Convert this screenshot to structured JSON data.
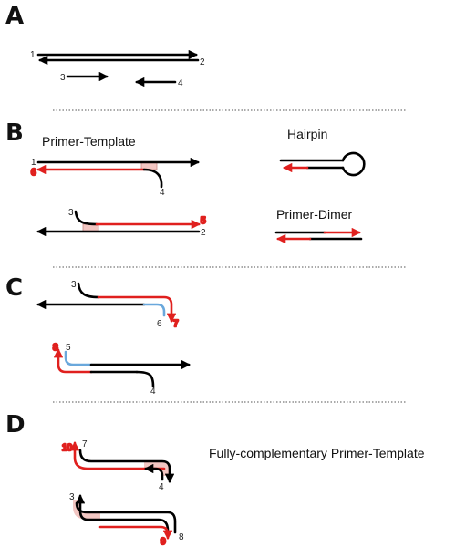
{
  "panels": [
    "A",
    "B",
    "C",
    "D"
  ],
  "labels": {
    "primer_template": "Primer-Template",
    "hairpin": "Hairpin",
    "primer_dimer": "Primer-Dimer",
    "fully_complementary": "Fully-complementary Primer-Template"
  },
  "numbers": {
    "A": [
      "1",
      "2",
      "3",
      "4"
    ],
    "B": [
      "1",
      "6",
      "4",
      "3",
      "5",
      "2"
    ],
    "C": [
      "3",
      "6",
      "7",
      "8",
      "5",
      "4"
    ],
    "D": [
      "10",
      "7",
      "4",
      "3",
      "9",
      "8"
    ]
  },
  "colors": {
    "template": "#000000",
    "extension": "#e0201e",
    "copied_primer": "#6aa8dc",
    "binding_site": "#f2c6c2"
  }
}
